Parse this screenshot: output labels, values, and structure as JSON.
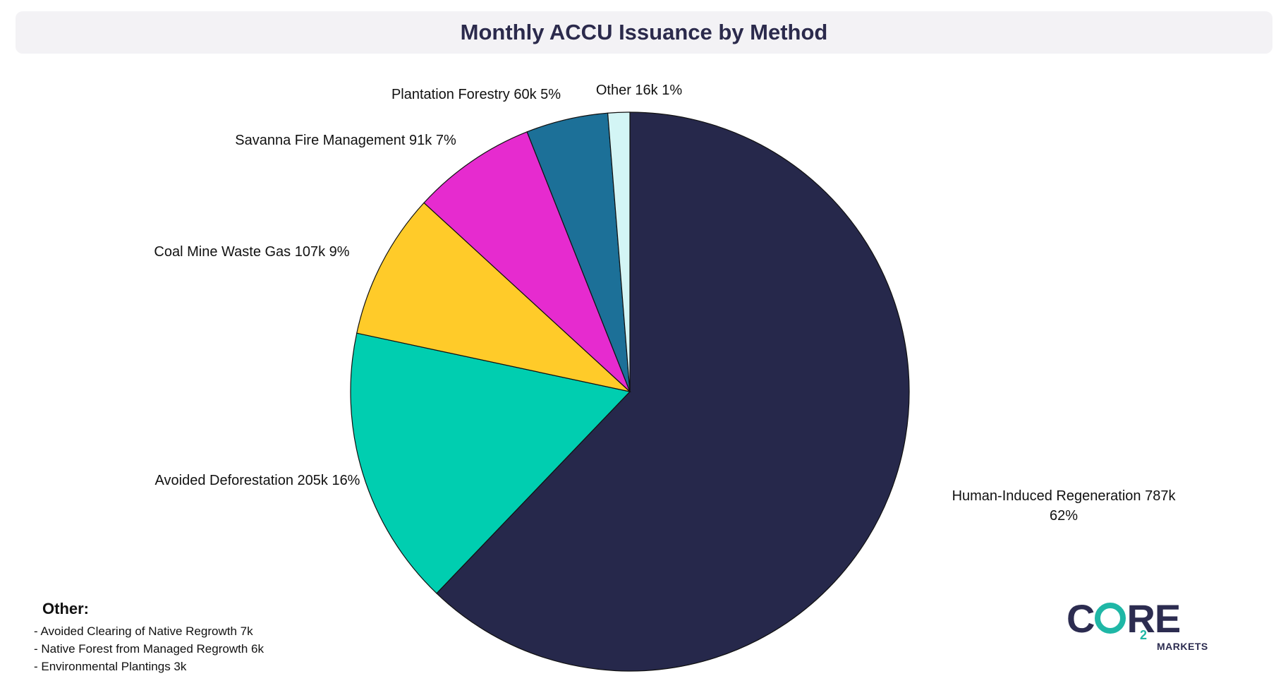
{
  "chart_data": {
    "type": "pie",
    "title": "Monthly ACCU Issuance by Method",
    "start_angle_deg": 0,
    "direction": "clockwise",
    "slices": [
      {
        "name": "Human-Induced Regeneration",
        "value_label": "787k",
        "value": 787,
        "percent": 62,
        "percent_label": "62%",
        "color": "#26284b"
      },
      {
        "name": "Avoided Deforestation",
        "value_label": "205k",
        "value": 205,
        "percent": 16,
        "percent_label": "16%",
        "color": "#00ceb0"
      },
      {
        "name": "Coal Mine Waste Gas",
        "value_label": "107k",
        "value": 107,
        "percent": 9,
        "percent_label": "9%",
        "color": "#ffcb29"
      },
      {
        "name": "Savanna Fire Management",
        "value_label": "91k",
        "value": 91,
        "percent": 7,
        "percent_label": "7%",
        "color": "#e62bcf"
      },
      {
        "name": "Plantation Forestry",
        "value_label": "60k",
        "value": 60,
        "percent": 5,
        "percent_label": "5%",
        "color": "#1c7098"
      },
      {
        "name": "Other",
        "value_label": "16k",
        "value": 16,
        "percent": 1,
        "percent_label": "1%",
        "color": "#d3f5f5"
      }
    ]
  },
  "other_note": {
    "heading": "Other:",
    "items": [
      "- Avoided Clearing of Native Regrowth 7k",
      "- Native Forest from Managed Regrowth 6k",
      "- Environmental Plantings 3k"
    ]
  },
  "logo": {
    "brand": "CORE",
    "subscript": "2",
    "tagline": "MARKETS",
    "color_primary": "#2c2c50",
    "color_accent": "#1fb7a6"
  }
}
